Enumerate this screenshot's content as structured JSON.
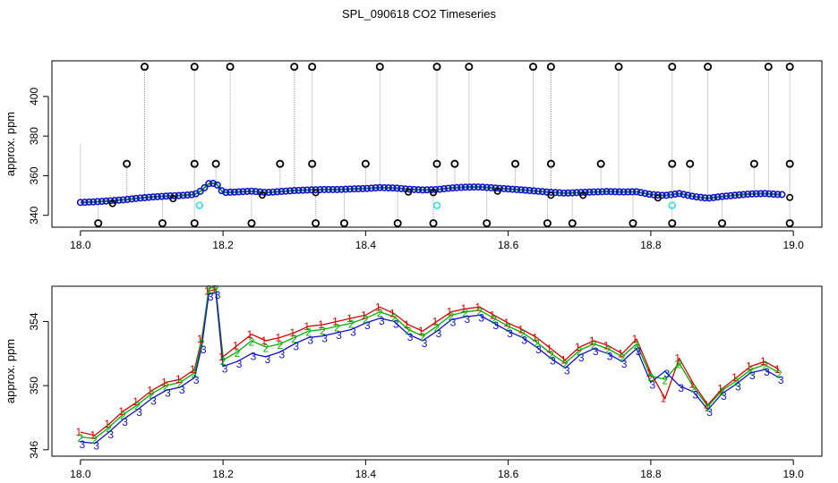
{
  "title": "SPL_090618  CO2 Timeseries",
  "colors": {
    "series1": "#e00000",
    "series2": "#00b000",
    "series3": "#1010d0",
    "marker": "#000000",
    "highlight": "#40e0e0",
    "spike": "#a0a0a0"
  },
  "chart_data": [
    {
      "type": "scatter",
      "title": "",
      "xlabel": "",
      "ylabel": "approx. ppm",
      "xlim": [
        17.96,
        19.04
      ],
      "ylim": [
        334,
        418
      ],
      "xticks": [
        18.0,
        18.2,
        18.4,
        18.6,
        18.8,
        19.0
      ],
      "xtick_labels": [
        "18.0",
        "18.2",
        "18.4",
        "18.6",
        "18.8",
        "19.0"
      ],
      "yticks": [
        340,
        360,
        380,
        400
      ],
      "ytick_labels": [
        "340",
        "360",
        "380",
        "400"
      ],
      "baseline": {
        "x": [
          18.0,
          18.02,
          18.04,
          18.06,
          18.08,
          18.1,
          18.12,
          18.14,
          18.16,
          18.17,
          18.18,
          18.19,
          18.2,
          18.22,
          18.24,
          18.26,
          18.28,
          18.3,
          18.32,
          18.34,
          18.36,
          18.38,
          18.4,
          18.42,
          18.44,
          18.46,
          18.48,
          18.5,
          18.52,
          18.54,
          18.56,
          18.58,
          18.6,
          18.62,
          18.64,
          18.66,
          18.68,
          18.7,
          18.72,
          18.74,
          18.76,
          18.78,
          18.8,
          18.82,
          18.84,
          18.86,
          18.88,
          18.9,
          18.92,
          18.94,
          18.96,
          18.98
        ],
        "y": [
          346.5,
          346.8,
          347.3,
          347.8,
          348.6,
          349.2,
          349.7,
          350.0,
          350.5,
          352.5,
          356.0,
          356.2,
          351.5,
          351.8,
          352.2,
          351.5,
          352.0,
          352.5,
          352.8,
          353.0,
          353.0,
          353.3,
          353.5,
          354.0,
          353.8,
          353.2,
          352.8,
          353.0,
          353.8,
          354.2,
          354.3,
          353.8,
          353.3,
          352.8,
          352.2,
          351.6,
          351.2,
          351.5,
          351.8,
          352.0,
          351.8,
          351.9,
          350.5,
          350.0,
          351.0,
          349.5,
          348.6,
          349.5,
          350.2,
          350.8,
          351.0,
          350.5
        ]
      },
      "spikes_high": {
        "y": 415,
        "x": [
          18.09,
          18.16,
          18.21,
          18.3,
          18.325,
          18.42,
          18.5,
          18.545,
          18.635,
          18.66,
          18.755,
          18.83,
          18.88,
          18.965,
          18.995
        ]
      },
      "mid_points": {
        "y": 366,
        "x": [
          18.065,
          18.16,
          18.19,
          18.28,
          18.325,
          18.4,
          18.5,
          18.525,
          18.61,
          18.66,
          18.73,
          18.83,
          18.855,
          18.945,
          18.995
        ]
      },
      "low_points": {
        "y": 336,
        "x": [
          18.025,
          18.115,
          18.16,
          18.24,
          18.33,
          18.37,
          18.445,
          18.495,
          18.57,
          18.655,
          18.69,
          18.775,
          18.83,
          18.9,
          18.995
        ]
      },
      "highlight_points": {
        "y": 345,
        "x": [
          18.167,
          18.5,
          18.83
        ]
      }
    },
    {
      "type": "line",
      "title": "",
      "xlabel": "",
      "ylabel": "approx. ppm",
      "xlim": [
        17.96,
        19.04
      ],
      "ylim": [
        345.6,
        356.2
      ],
      "xticks": [
        18.0,
        18.2,
        18.4,
        18.6,
        18.8,
        19.0
      ],
      "xtick_labels": [
        "18.0",
        "18.2",
        "18.4",
        "18.6",
        "18.8",
        "19.0"
      ],
      "yticks": [
        346,
        350,
        354
      ],
      "ytick_labels": [
        "346",
        "350",
        "354"
      ],
      "x": [
        18.0,
        18.02,
        18.04,
        18.06,
        18.08,
        18.1,
        18.12,
        18.14,
        18.16,
        18.17,
        18.18,
        18.19,
        18.2,
        18.22,
        18.24,
        18.26,
        18.28,
        18.3,
        18.32,
        18.34,
        18.36,
        18.38,
        18.4,
        18.42,
        18.44,
        18.46,
        18.48,
        18.5,
        18.52,
        18.54,
        18.56,
        18.58,
        18.6,
        18.62,
        18.64,
        18.66,
        18.68,
        18.7,
        18.72,
        18.74,
        18.76,
        18.78,
        18.8,
        18.82,
        18.84,
        18.86,
        18.88,
        18.9,
        18.92,
        18.94,
        18.96,
        18.98
      ],
      "series": [
        {
          "name": "1",
          "marker": "1",
          "values": [
            347.1,
            346.9,
            347.6,
            348.4,
            349.0,
            349.7,
            350.2,
            350.4,
            351.0,
            352.9,
            355.9,
            356.0,
            351.8,
            352.5,
            353.2,
            352.8,
            353.0,
            353.3,
            353.7,
            353.8,
            354.0,
            354.2,
            354.4,
            354.9,
            354.5,
            353.8,
            353.4,
            354.0,
            354.6,
            354.8,
            354.9,
            354.4,
            353.9,
            353.5,
            353.0,
            352.3,
            351.6,
            352.4,
            352.8,
            352.5,
            352.0,
            352.9,
            350.8,
            349.2,
            351.7,
            350.1,
            348.8,
            349.8,
            350.5,
            351.2,
            351.5,
            351.0
          ]
        },
        {
          "name": "2",
          "marker": "2",
          "values": [
            346.8,
            346.7,
            347.4,
            348.2,
            348.8,
            349.5,
            350.0,
            350.2,
            350.8,
            352.7,
            356.1,
            356.1,
            351.6,
            352.1,
            352.8,
            352.4,
            352.6,
            353.0,
            353.4,
            353.5,
            353.7,
            353.9,
            354.2,
            354.6,
            354.3,
            353.5,
            353.1,
            353.7,
            354.4,
            354.6,
            354.7,
            354.2,
            353.7,
            353.3,
            352.7,
            352.0,
            351.4,
            352.2,
            352.6,
            352.3,
            351.8,
            352.6,
            350.6,
            350.4,
            351.4,
            349.9,
            348.7,
            349.7,
            350.3,
            351.0,
            351.3,
            350.8
          ]
        },
        {
          "name": "3",
          "marker": "3",
          "values": [
            346.5,
            346.4,
            347.1,
            347.9,
            348.5,
            349.2,
            349.7,
            349.9,
            350.5,
            352.4,
            355.7,
            355.8,
            351.2,
            351.5,
            352.0,
            351.8,
            352.1,
            352.6,
            353.0,
            353.1,
            353.3,
            353.5,
            353.9,
            354.2,
            354.0,
            353.2,
            352.8,
            353.4,
            354.1,
            354.3,
            354.4,
            353.9,
            353.4,
            353.0,
            352.4,
            351.7,
            351.1,
            351.9,
            352.3,
            352.0,
            351.5,
            352.3,
            350.2,
            350.9,
            350.0,
            349.6,
            348.5,
            349.5,
            350.1,
            350.8,
            351.0,
            350.5
          ]
        }
      ]
    }
  ]
}
